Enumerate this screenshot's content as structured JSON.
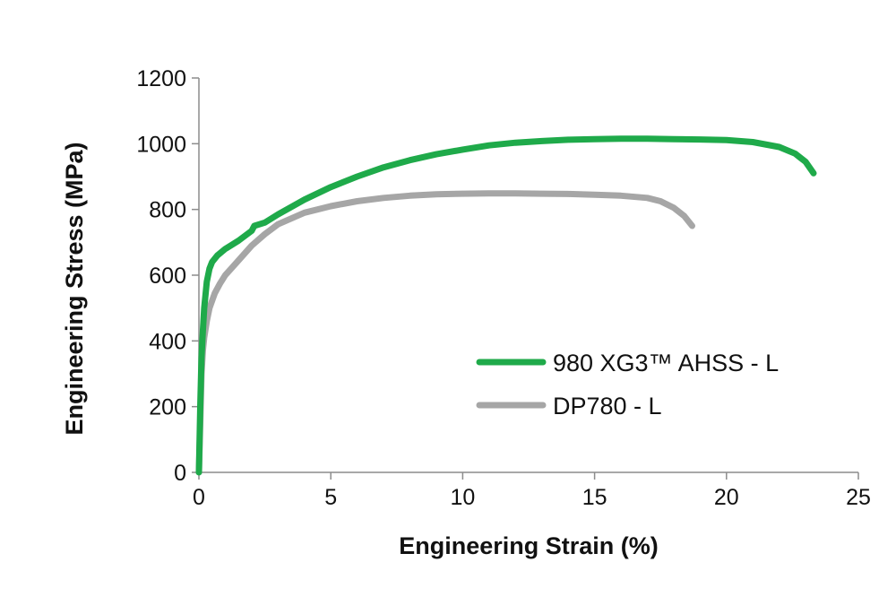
{
  "chart_data": {
    "type": "line",
    "title": "",
    "xlabel": "Engineering Strain (%)",
    "ylabel": "Engineering Stress (MPa)",
    "xlim": [
      0,
      25
    ],
    "ylim": [
      0,
      1200
    ],
    "xticks": [
      0,
      5,
      10,
      15,
      20,
      25
    ],
    "yticks": [
      0,
      200,
      400,
      600,
      800,
      1000,
      1200
    ],
    "grid": false,
    "legend_position": "right",
    "series": [
      {
        "name": "980 XG3™ AHSS - L",
        "color": "#1faa4a",
        "x": [
          0,
          0.05,
          0.1,
          0.15,
          0.2,
          0.3,
          0.4,
          0.5,
          0.7,
          1.0,
          1.5,
          2.0,
          2.1,
          2.5,
          3.0,
          4.0,
          5.0,
          6.0,
          7.0,
          8.0,
          9.0,
          10.0,
          11.0,
          12.0,
          13.0,
          14.0,
          15.0,
          16.0,
          17.0,
          18.0,
          19.0,
          20.0,
          21.0,
          22.0,
          22.6,
          23.0,
          23.3
        ],
        "y": [
          0,
          200,
          350,
          430,
          500,
          580,
          620,
          640,
          660,
          680,
          705,
          735,
          750,
          760,
          785,
          830,
          868,
          900,
          928,
          950,
          968,
          982,
          995,
          1003,
          1008,
          1012,
          1014,
          1015,
          1015,
          1014,
          1013,
          1011,
          1005,
          990,
          970,
          945,
          910
        ]
      },
      {
        "name": "DP780 - L",
        "color": "#a6a6a6",
        "x": [
          0,
          0.05,
          0.1,
          0.15,
          0.2,
          0.3,
          0.4,
          0.6,
          0.8,
          1.0,
          1.5,
          2.0,
          2.5,
          3.0,
          4.0,
          5.0,
          6.0,
          7.0,
          8.0,
          9.0,
          10.0,
          11.0,
          12.0,
          13.0,
          14.0,
          15.0,
          16.0,
          17.0,
          17.5,
          18.0,
          18.4,
          18.7
        ],
        "y": [
          0,
          150,
          300,
          370,
          410,
          460,
          500,
          545,
          575,
          600,
          645,
          690,
          725,
          755,
          790,
          810,
          825,
          835,
          842,
          846,
          848,
          849,
          849,
          848,
          847,
          845,
          842,
          835,
          825,
          805,
          780,
          750
        ]
      }
    ]
  }
}
